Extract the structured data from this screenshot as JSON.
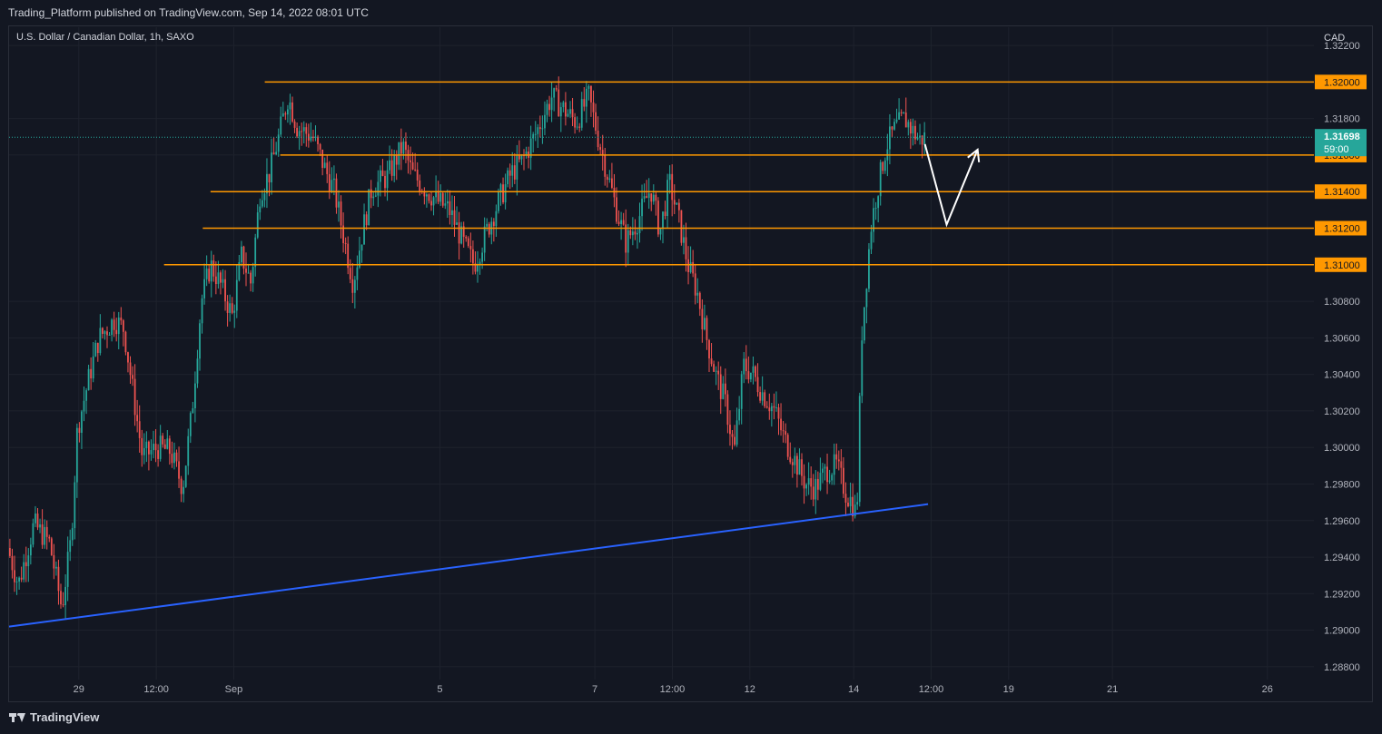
{
  "header": {
    "published": "Trading_Platform published on TradingView.com, Sep 14, 2022 08:01 UTC",
    "symbol": "U.S. Dollar / Canadian Dollar, 1h, SAXO"
  },
  "footer": {
    "brand": "TradingView"
  },
  "colors": {
    "up": "#26a69a",
    "down": "#ef5350",
    "level": "#ff9800",
    "trendline": "#2962ff",
    "arrow": "#ffffff",
    "price_badge": "#26a69a",
    "grid": "#1e222d"
  },
  "chart_data": {
    "type": "candlestick",
    "timeframe": "1h",
    "currency": "CAD",
    "y_axis_unit": "CAD",
    "ylim": [
      1.2875,
      1.3225
    ],
    "y_ticks": [
      "1.32200",
      "1.31800",
      "1.31600",
      "1.30800",
      "1.30600",
      "1.30400",
      "1.30200",
      "1.30000",
      "1.29800",
      "1.29600",
      "1.29400",
      "1.29200",
      "1.29000",
      "1.28800"
    ],
    "x_ticks": [
      {
        "label": "29",
        "day": 2.0
      },
      {
        "label": "12:00",
        "day": 2.5
      },
      {
        "label": "Sep",
        "day": 3.0
      },
      {
        "label": "5",
        "day": 4.33
      },
      {
        "label": "7",
        "day": 5.33
      },
      {
        "label": "12:00",
        "day": 5.83
      },
      {
        "label": "12",
        "day": 6.33
      },
      {
        "label": "14",
        "day": 7.0
      },
      {
        "label": "12:00",
        "day": 7.5
      },
      {
        "label": "19",
        "day": 8.0
      },
      {
        "label": "21",
        "day": 8.67
      },
      {
        "label": "26",
        "day": 9.67
      }
    ],
    "x_range": [
      1.55,
      9.97
    ],
    "series_path": [
      [
        1.55,
        1.2945
      ],
      [
        1.62,
        1.2925
      ],
      [
        1.72,
        1.2958
      ],
      [
        1.82,
        1.2948
      ],
      [
        1.9,
        1.2912
      ],
      [
        1.96,
        1.295
      ],
      [
        2.0,
        1.301
      ],
      [
        2.08,
        1.304
      ],
      [
        2.14,
        1.306
      ],
      [
        2.24,
        1.307
      ],
      [
        2.3,
        1.3065
      ],
      [
        2.36,
        1.303
      ],
      [
        2.42,
        1.2995
      ],
      [
        2.52,
        1.3
      ],
      [
        2.6,
        1.2998
      ],
      [
        2.68,
        1.2978
      ],
      [
        2.74,
        1.302
      ],
      [
        2.8,
        1.308
      ],
      [
        2.86,
        1.31
      ],
      [
        2.92,
        1.309
      ],
      [
        3.0,
        1.3072
      ],
      [
        3.06,
        1.3105
      ],
      [
        3.12,
        1.309
      ],
      [
        3.18,
        1.314
      ],
      [
        3.24,
        1.315
      ],
      [
        3.3,
        1.317
      ],
      [
        3.36,
        1.3192
      ],
      [
        3.42,
        1.3175
      ],
      [
        3.52,
        1.317
      ],
      [
        3.6,
        1.3152
      ],
      [
        3.66,
        1.314
      ],
      [
        3.72,
        1.3115
      ],
      [
        3.78,
        1.309
      ],
      [
        3.84,
        1.3118
      ],
      [
        3.9,
        1.3142
      ],
      [
        4.0,
        1.3148
      ],
      [
        4.1,
        1.3165
      ],
      [
        4.16,
        1.315
      ],
      [
        4.24,
        1.3142
      ],
      [
        4.32,
        1.3135
      ],
      [
        4.4,
        1.313
      ],
      [
        4.5,
        1.311
      ],
      [
        4.56,
        1.31
      ],
      [
        4.64,
        1.3118
      ],
      [
        4.72,
        1.3135
      ],
      [
        4.8,
        1.315
      ],
      [
        4.88,
        1.3158
      ],
      [
        4.96,
        1.3172
      ],
      [
        5.06,
        1.3192
      ],
      [
        5.14,
        1.3185
      ],
      [
        5.22,
        1.3178
      ],
      [
        5.3,
        1.3192
      ],
      [
        5.36,
        1.317
      ],
      [
        5.42,
        1.315
      ],
      [
        5.48,
        1.313
      ],
      [
        5.54,
        1.3112
      ],
      [
        5.62,
        1.3125
      ],
      [
        5.7,
        1.3142
      ],
      [
        5.76,
        1.3118
      ],
      [
        5.82,
        1.3145
      ],
      [
        5.88,
        1.3125
      ],
      [
        5.94,
        1.31
      ],
      [
        6.0,
        1.3085
      ],
      [
        6.06,
        1.306
      ],
      [
        6.12,
        1.304
      ],
      [
        6.18,
        1.3025
      ],
      [
        6.24,
        1.2998
      ],
      [
        6.3,
        1.3045
      ],
      [
        6.36,
        1.304
      ],
      [
        6.42,
        1.303
      ],
      [
        6.5,
        1.302
      ],
      [
        6.56,
        1.3005
      ],
      [
        6.62,
        1.2995
      ],
      [
        6.7,
        1.298
      ],
      [
        6.76,
        1.2978
      ],
      [
        6.84,
        1.2988
      ],
      [
        6.9,
        1.299
      ],
      [
        6.96,
        1.2975
      ],
      [
        7.0,
        1.297
      ],
      [
        7.03,
        1.2962
      ],
      [
        7.06,
        1.306
      ],
      [
        7.12,
        1.312
      ],
      [
        7.16,
        1.314
      ],
      [
        7.22,
        1.3165
      ],
      [
        7.28,
        1.3175
      ],
      [
        7.34,
        1.318
      ],
      [
        7.4,
        1.3172
      ],
      [
        7.44,
        1.3168
      ],
      [
        7.46,
        1.31698
      ]
    ],
    "last_price": "1.31698",
    "countdown": "59:00",
    "horizontal_levels": [
      {
        "price": 1.32,
        "label": "1.32000",
        "from_day": 3.2
      },
      {
        "price": 1.316,
        "label": "1.31600",
        "from_day": 3.3
      },
      {
        "price": 1.314,
        "label": "1.31400",
        "from_day": 2.85
      },
      {
        "price": 1.312,
        "label": "1.31200",
        "from_day": 2.8
      },
      {
        "price": 1.31,
        "label": "1.31000",
        "from_day": 2.55
      }
    ],
    "trendline": {
      "from": [
        1.55,
        1.2902
      ],
      "to": [
        7.48,
        1.2969
      ]
    },
    "projection_arrow": [
      [
        7.46,
        1.3166
      ],
      [
        7.6,
        1.3122
      ],
      [
        7.8,
        1.3163
      ]
    ]
  }
}
